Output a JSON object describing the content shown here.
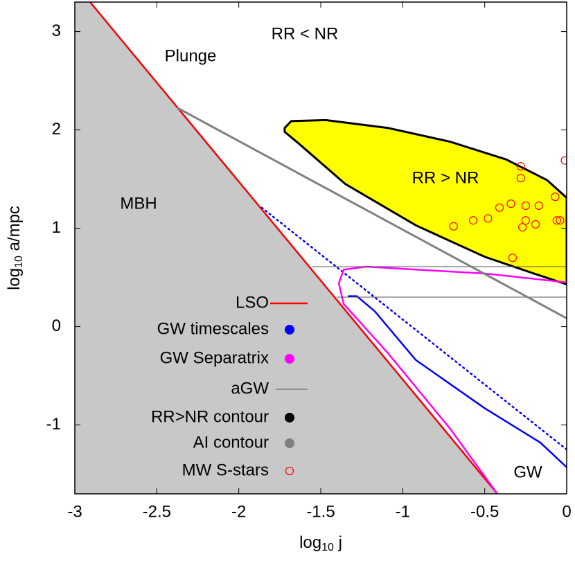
{
  "chart_data": {
    "type": "line",
    "xlabel": {
      "base": "log",
      "sub": "10",
      "rest": " j"
    },
    "ylabel": {
      "base": "log",
      "sub": "10",
      "rest": " a/mpc"
    },
    "xlim": [
      -3,
      0
    ],
    "ylim": [
      -1.7,
      3.3
    ],
    "xticks": [
      -3,
      -2.5,
      -2,
      -1.5,
      -1,
      -0.5,
      0
    ],
    "yticks": [
      -1,
      0,
      1,
      2,
      3
    ],
    "region_color": "#c8c8c8",
    "annotations": [
      "RR < NR",
      "Plunge",
      "MBH",
      "RR > NR",
      "GW"
    ],
    "series": [
      {
        "name": "LSO",
        "color": "#ff0000",
        "legend": "line",
        "width": 2.5,
        "x": [
          -2.907,
          -0.423
        ],
        "values": [
          3.3,
          -1.7
        ]
      },
      {
        "name": "GW timescales",
        "color": "#0000ff",
        "legend": "dot",
        "width": 2.5,
        "x": [
          -1.33,
          -1.28,
          -1.17,
          -0.92,
          -0.5,
          -0.16,
          0
        ],
        "values": [
          0.31,
          0.31,
          0.155,
          -0.34,
          -0.83,
          -1.18,
          -1.43
        ]
      },
      {
        "color": "#0000ff",
        "dash": true,
        "width": 2.5,
        "x": [
          -1.86,
          0
        ],
        "values": [
          1.21,
          -1.25
        ]
      },
      {
        "name": "GW Separatrix",
        "color": "#ff00ff",
        "legend": "dot",
        "width": 2.5,
        "x": [
          0,
          -0.5,
          -0.92,
          -1.22,
          -1.36,
          -1.39,
          -1.36,
          -1.09,
          -0.71,
          -0.423
        ],
        "values": [
          0.45,
          0.54,
          0.58,
          0.61,
          0.58,
          0.44,
          0.23,
          -0.27,
          -1.04,
          -1.7
        ]
      },
      {
        "name": "aGW",
        "color": "#555555",
        "legend": "line",
        "width": 1,
        "x": [
          -1.55,
          0,
          null,
          -1.4,
          0
        ],
        "values": [
          0.61,
          0.61,
          null,
          0.3,
          0.3
        ]
      },
      {
        "name": "RR>NR contour",
        "color": "#000000",
        "fill": "#ffff00",
        "legend": "dot",
        "width": 3,
        "x": [
          -1.72,
          -1.68,
          -1.47,
          -1.09,
          -0.71,
          -0.37,
          -0.12,
          0,
          0,
          -0.2,
          -0.5,
          -0.92,
          -1.35,
          -1.64,
          -1.72
        ],
        "values": [
          2.02,
          2.09,
          2.1,
          2.02,
          1.88,
          1.7,
          1.49,
          1.31,
          0.43,
          0.54,
          0.71,
          1.03,
          1.45,
          1.87,
          1.98
        ]
      },
      {
        "name": "AI contour",
        "color": "#808080",
        "legend": "dot",
        "width": 3,
        "x": [
          -2.37,
          0
        ],
        "values": [
          2.22,
          0.085
        ]
      },
      {
        "name": "MW S-stars",
        "color": "#ff0000",
        "legend": "circle",
        "scatter": true,
        "x": [
          -0.69,
          -0.57,
          -0.48,
          -0.41,
          -0.34,
          -0.28,
          -0.28,
          -0.25,
          -0.27,
          -0.25,
          -0.19,
          -0.17,
          -0.07,
          -0.06,
          -0.04,
          -0.01,
          -0.33
        ],
        "values": [
          1.02,
          1.08,
          1.1,
          1.21,
          1.25,
          1.63,
          1.51,
          1.23,
          1.01,
          1.08,
          1.04,
          1.23,
          1.32,
          1.08,
          1.08,
          1.69,
          0.7
        ]
      }
    ]
  }
}
